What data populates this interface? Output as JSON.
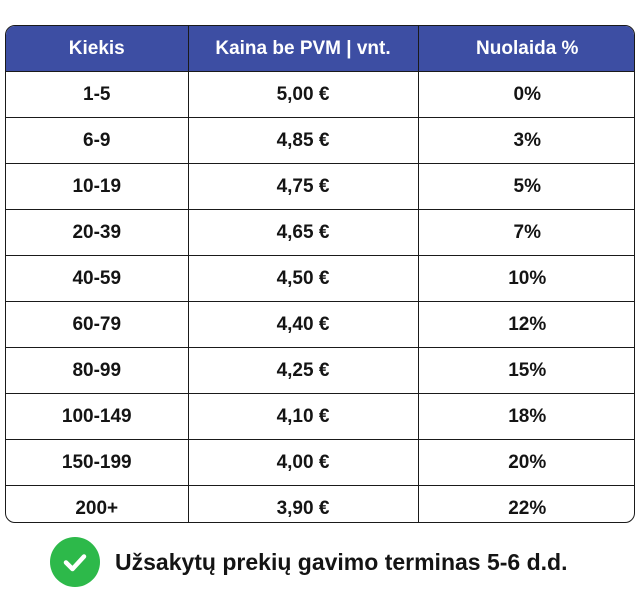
{
  "table": {
    "headers": [
      "Kiekis",
      "Kaina be PVM | vnt.",
      "Nuolaida %"
    ],
    "rows": [
      [
        "1-5",
        "5,00 €",
        "0%"
      ],
      [
        "6-9",
        "4,85 €",
        "3%"
      ],
      [
        "10-19",
        "4,75 €",
        "5%"
      ],
      [
        "20-39",
        "4,65 €",
        "7%"
      ],
      [
        "40-59",
        "4,50 €",
        "10%"
      ],
      [
        "60-79",
        "4,40 €",
        "12%"
      ],
      [
        "80-99",
        "4,25 €",
        "15%"
      ],
      [
        "100-149",
        "4,10 €",
        "18%"
      ],
      [
        "150-199",
        "4,00 €",
        "20%"
      ],
      [
        "200+",
        "3,90 €",
        "22%"
      ]
    ]
  },
  "footer": {
    "icon": "check-circle-icon",
    "text": "Užsakytų prekių gavimo terminas 5-6 d.d."
  },
  "colors": {
    "header_bg": "#3d4ea3",
    "header_text": "#ffffff",
    "border": "#1a1a1a",
    "check_green": "#2db94a"
  }
}
